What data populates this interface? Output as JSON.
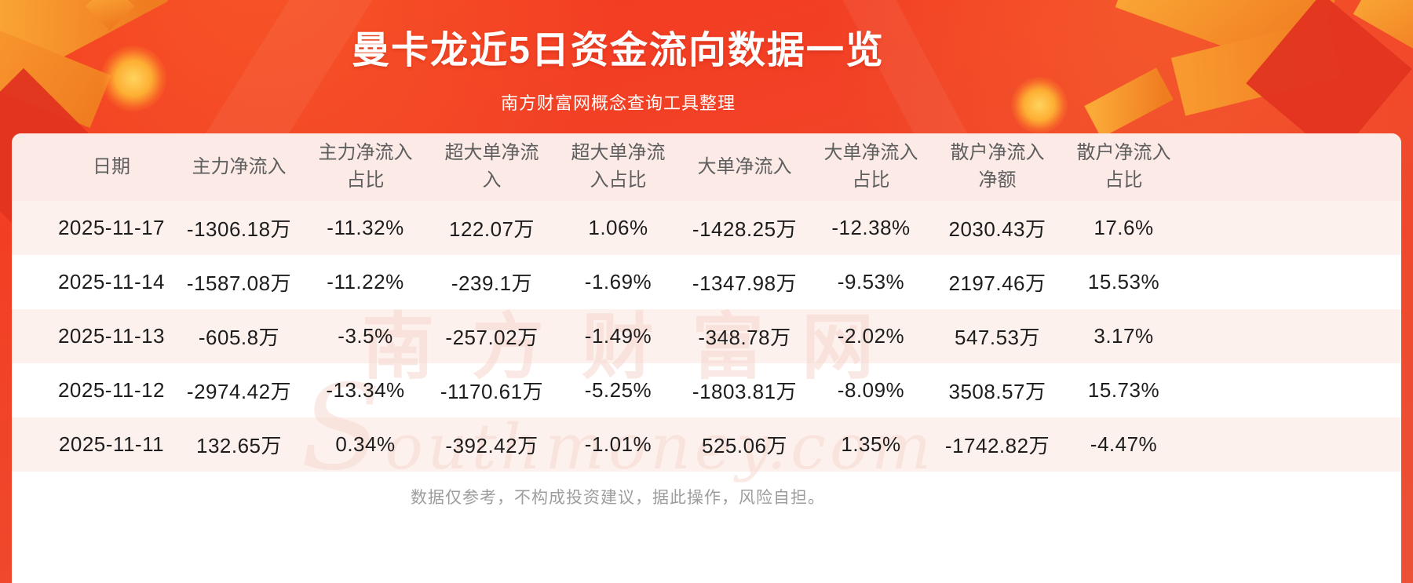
{
  "header": {
    "title": "曼卡龙近5日资金流向数据一览",
    "subtitle": "南方财富网概念查询工具整理"
  },
  "chart_data": {
    "type": "table",
    "title": "曼卡龙近5日资金流向数据一览",
    "columns": [
      "日期",
      "主力净流入",
      "主力净流入占比",
      "超大单净流入",
      "超大单净流入占比",
      "大单净流入",
      "大单净流入占比",
      "散户净流入净额",
      "散户净流入占比"
    ],
    "rows": [
      [
        "2025-11-17",
        "-1306.18万",
        "-11.32%",
        "122.07万",
        "1.06%",
        "-1428.25万",
        "-12.38%",
        "2030.43万",
        "17.6%"
      ],
      [
        "2025-11-14",
        "-1587.08万",
        "-11.22%",
        "-239.1万",
        "-1.69%",
        "-1347.98万",
        "-9.53%",
        "2197.46万",
        "15.53%"
      ],
      [
        "2025-11-13",
        "-605.8万",
        "-3.5%",
        "-257.02万",
        "-1.49%",
        "-348.78万",
        "-2.02%",
        "547.53万",
        "3.17%"
      ],
      [
        "2025-11-12",
        "-2974.42万",
        "-13.34%",
        "-1170.61万",
        "-5.25%",
        "-1803.81万",
        "-8.09%",
        "3508.57万",
        "15.73%"
      ],
      [
        "2025-11-11",
        "132.65万",
        "0.34%",
        "-392.42万",
        "-1.01%",
        "525.06万",
        "1.35%",
        "-1742.82万",
        "-4.47%"
      ]
    ]
  },
  "watermark": {
    "cn": "南方财富网",
    "en": "Southmoney.com"
  },
  "footer": {
    "disclaimer": "数据仅参考，不构成投资建议，据此操作，风险自担。"
  },
  "colors": {
    "background_red": "#f5391f",
    "background_red_deep": "#ee4a2e",
    "accent_gold": "#fbaa38",
    "accent_orange": "#f07c20",
    "fold_red": "#e23420",
    "header_pink": "#fbeae5",
    "row_pink": "#fdf1ee",
    "row_white": "#ffffff",
    "header_text": "#5e5e5e",
    "text_dark": "#1d1d1d",
    "disclaimer_gray": "#9d9d9d",
    "watermark_pink": "#f7d6ce",
    "title_white": "#ffffff"
  }
}
